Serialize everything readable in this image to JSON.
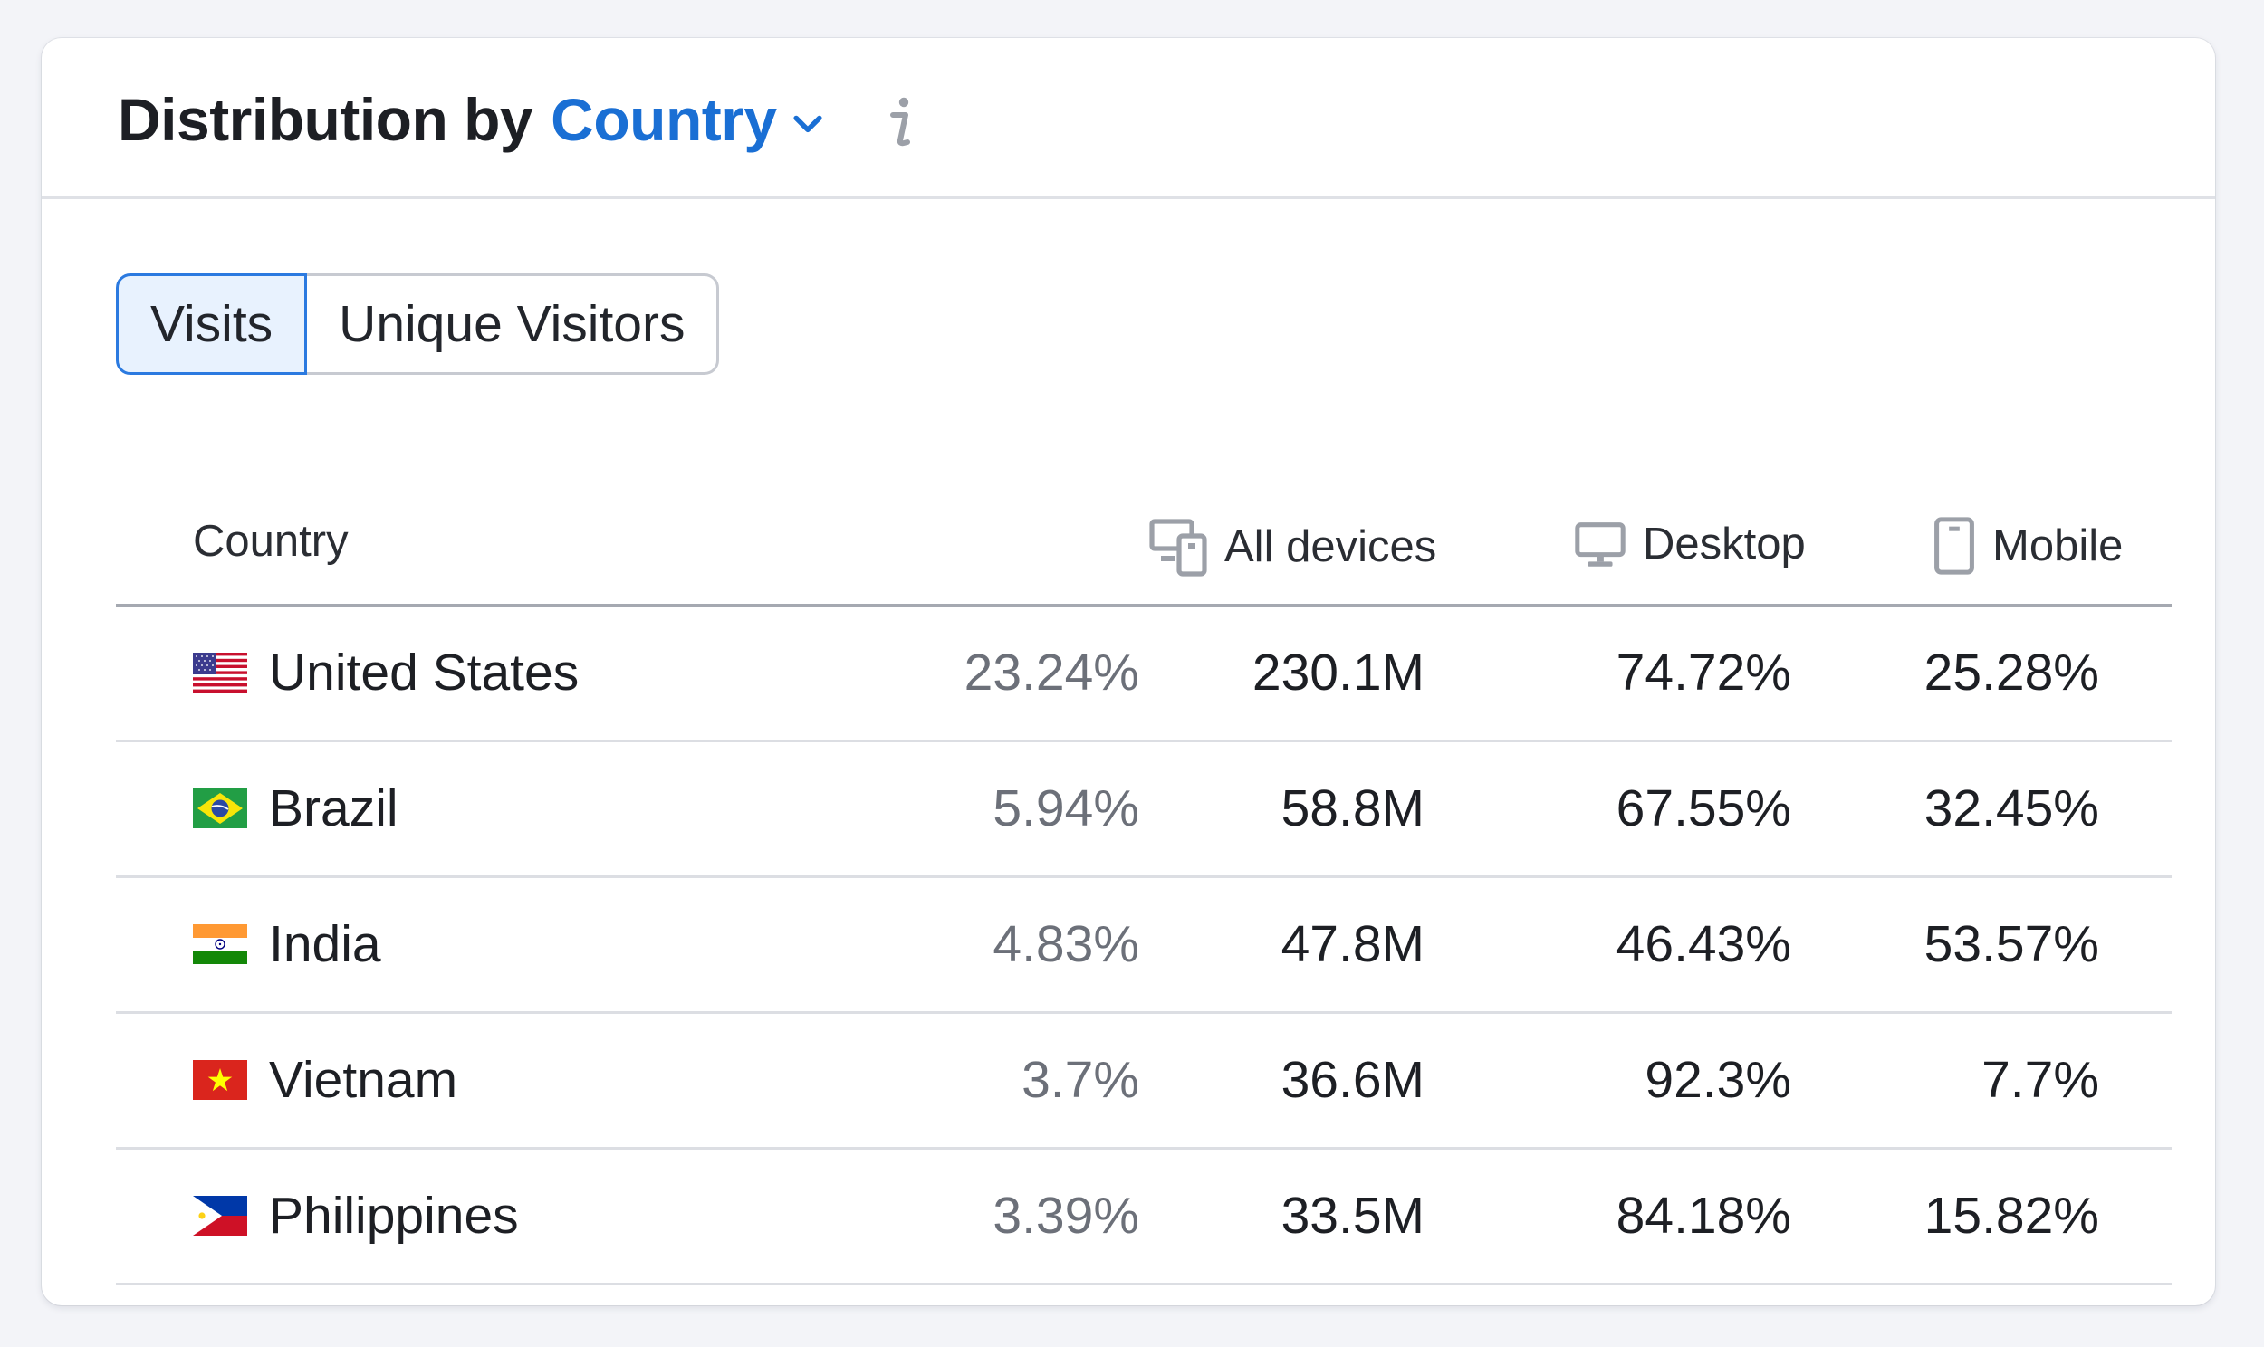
{
  "header": {
    "title_prefix": "Distribution by",
    "title_dimension": "Country",
    "info_icon": "info-icon",
    "chevron_icon": "chevron-down-icon"
  },
  "toggle": {
    "options": [
      "Visits",
      "Unique Visitors"
    ],
    "selected": "Visits"
  },
  "table": {
    "columns": {
      "country": "Country",
      "all_devices": "All devices",
      "desktop": "Desktop",
      "mobile": "Mobile"
    },
    "rows": [
      {
        "country": "United States",
        "flag": "us-flag-icon",
        "share": "23.24%",
        "all": "230.1M",
        "desktop": "74.72%",
        "mobile": "25.28%"
      },
      {
        "country": "Brazil",
        "flag": "brazil-flag-icon",
        "share": "5.94%",
        "all": "58.8M",
        "desktop": "67.55%",
        "mobile": "32.45%"
      },
      {
        "country": "India",
        "flag": "india-flag-icon",
        "share": "4.83%",
        "all": "47.8M",
        "desktop": "46.43%",
        "mobile": "53.57%"
      },
      {
        "country": "Vietnam",
        "flag": "vietnam-flag-icon",
        "share": "3.7%",
        "all": "36.6M",
        "desktop": "92.3%",
        "mobile": "7.7%"
      },
      {
        "country": "Philippines",
        "flag": "philippines-flag-icon",
        "share": "3.39%",
        "all": "33.5M",
        "desktop": "84.18%",
        "mobile": "15.82%"
      }
    ]
  },
  "colors": {
    "accent": "#1a6fd4",
    "selected_bg": "#e8f2fe",
    "muted_text": "#6c7079"
  }
}
